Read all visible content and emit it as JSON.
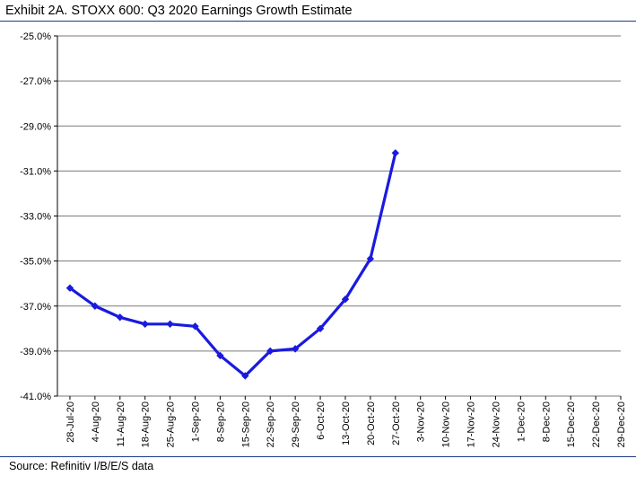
{
  "header": {
    "title": "Exhibit 2A.  STOXX 600: Q3 2020 Earnings Growth Estimate"
  },
  "footer": {
    "source": "Source: Refinitiv I/B/E/S data"
  },
  "chart_data": {
    "type": "line",
    "categories": [
      "28-Jul-20",
      "4-Aug-20",
      "11-Aug-20",
      "18-Aug-20",
      "25-Aug-20",
      "1-Sep-20",
      "8-Sep-20",
      "15-Sep-20",
      "22-Sep-20",
      "29-Sep-20",
      "6-Oct-20",
      "13-Oct-20",
      "20-Oct-20",
      "27-Oct-20",
      "3-Nov-20",
      "10-Nov-20",
      "17-Nov-20",
      "24-Nov-20",
      "1-Dec-20",
      "8-Dec-20",
      "15-Dec-20",
      "22-Dec-20",
      "29-Dec-20"
    ],
    "series": [
      {
        "values": [
          -36.2,
          -37.0,
          -37.5,
          -37.8,
          -37.8,
          -37.9,
          -39.2,
          -40.1,
          -39.0,
          -38.9,
          -38.0,
          -36.7,
          -34.9,
          -30.2,
          null,
          null,
          null,
          null,
          null,
          null,
          null,
          null,
          null
        ],
        "color": "#1a1adf"
      }
    ],
    "y_ticks": [
      "-25.0%",
      "-27.0%",
      "-29.0%",
      "-31.0%",
      "-33.0%",
      "-35.0%",
      "-37.0%",
      "-39.0%",
      "-41.0%"
    ],
    "ylim": [
      -41,
      -25
    ],
    "grid": "horizontal",
    "legend": "none"
  }
}
